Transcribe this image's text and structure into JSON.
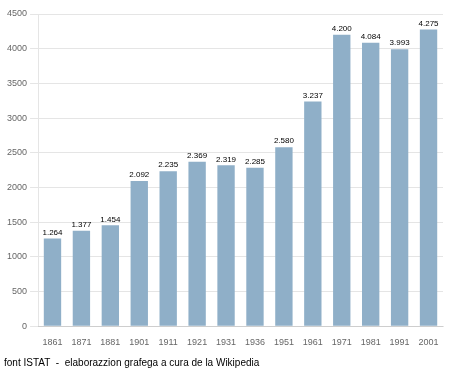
{
  "chart_data": {
    "type": "bar",
    "categories": [
      "1861",
      "1871",
      "1881",
      "1901",
      "1911",
      "1921",
      "1931",
      "1936",
      "1951",
      "1961",
      "1971",
      "1981",
      "1991",
      "2001"
    ],
    "values": [
      1264,
      1377,
      1454,
      2092,
      2235,
      2369,
      2319,
      2285,
      2580,
      3237,
      4200,
      4084,
      3993,
      4275
    ],
    "value_labels": [
      "1.264",
      "1.377",
      "1.454",
      "2.092",
      "2.235",
      "2.369",
      "2.319",
      "2.285",
      "2.580",
      "3.237",
      "4.200",
      "4.084",
      "3.993",
      "4.275"
    ],
    "data_labels": true,
    "color": "#8fafc8",
    "ylim": [
      0,
      4500
    ],
    "yticks": [
      0,
      500,
      1000,
      1500,
      2000,
      2500,
      3000,
      3500,
      4000,
      4500
    ],
    "grid": true,
    "annotations": [
      "font ISTAT  -  elaborazzion grafega a cura de la Wikipedia"
    ]
  }
}
